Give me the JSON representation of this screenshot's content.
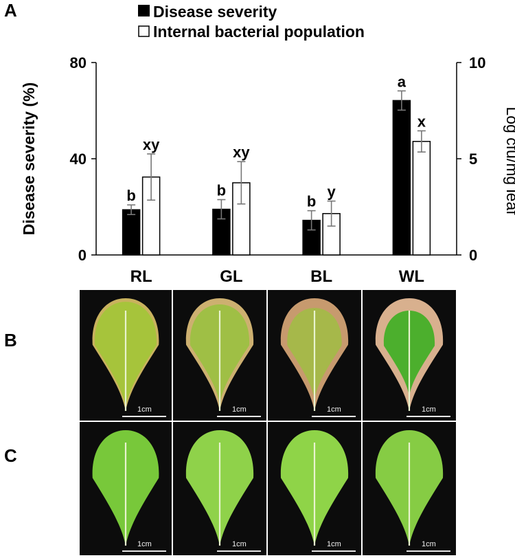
{
  "panels": {
    "a": "A",
    "b": "B",
    "c": "C"
  },
  "chart_data": {
    "type": "bar",
    "categories": [
      "RL",
      "GL",
      "BL",
      "WL"
    ],
    "legend_position": "top-left",
    "grid": false,
    "left_axis": {
      "label": "Disease severity (%)",
      "ylim": [
        0,
        80
      ],
      "ticks": [
        0,
        40,
        80
      ]
    },
    "right_axis": {
      "label": "Log cfu/mg leaf",
      "ylim": [
        0,
        10
      ],
      "ticks": [
        0,
        5,
        10
      ]
    },
    "series": [
      {
        "name": "Disease severity",
        "axis": "left",
        "color": "#000000",
        "values": [
          18.8,
          19.0,
          14.4,
          64.2
        ],
        "errors": [
          2.0,
          4.0,
          4.0,
          4.0
        ],
        "letters": [
          "b",
          "b",
          "b",
          "a"
        ]
      },
      {
        "name": "Internal bacterial population",
        "axis": "right",
        "color": "#ffffff",
        "values": [
          4.05,
          3.75,
          2.15,
          5.9
        ],
        "errors": [
          1.2,
          1.1,
          0.65,
          0.55
        ],
        "letters": [
          "xy",
          "xy",
          "y",
          "x"
        ]
      }
    ]
  },
  "photos": {
    "scale_label": "1cm",
    "row_b": [
      {
        "name": "RL",
        "leaf": "#a6c43b",
        "edge": "#c9b25e",
        "edge_amount": 0.2
      },
      {
        "name": "GL",
        "leaf": "#9fbf45",
        "edge": "#cdb070",
        "edge_amount": 0.35
      },
      {
        "name": "BL",
        "leaf": "#a6b84a",
        "edge": "#c79a6e",
        "edge_amount": 0.55
      },
      {
        "name": "WL",
        "leaf": "#4caf2d",
        "edge": "#d8b08e",
        "edge_amount": 0.7
      }
    ],
    "row_c": [
      {
        "name": "RL",
        "leaf": "#78c83a"
      },
      {
        "name": "GL",
        "leaf": "#8fd24a"
      },
      {
        "name": "BL",
        "leaf": "#8fd448"
      },
      {
        "name": "WL",
        "leaf": "#86cc44"
      }
    ]
  }
}
